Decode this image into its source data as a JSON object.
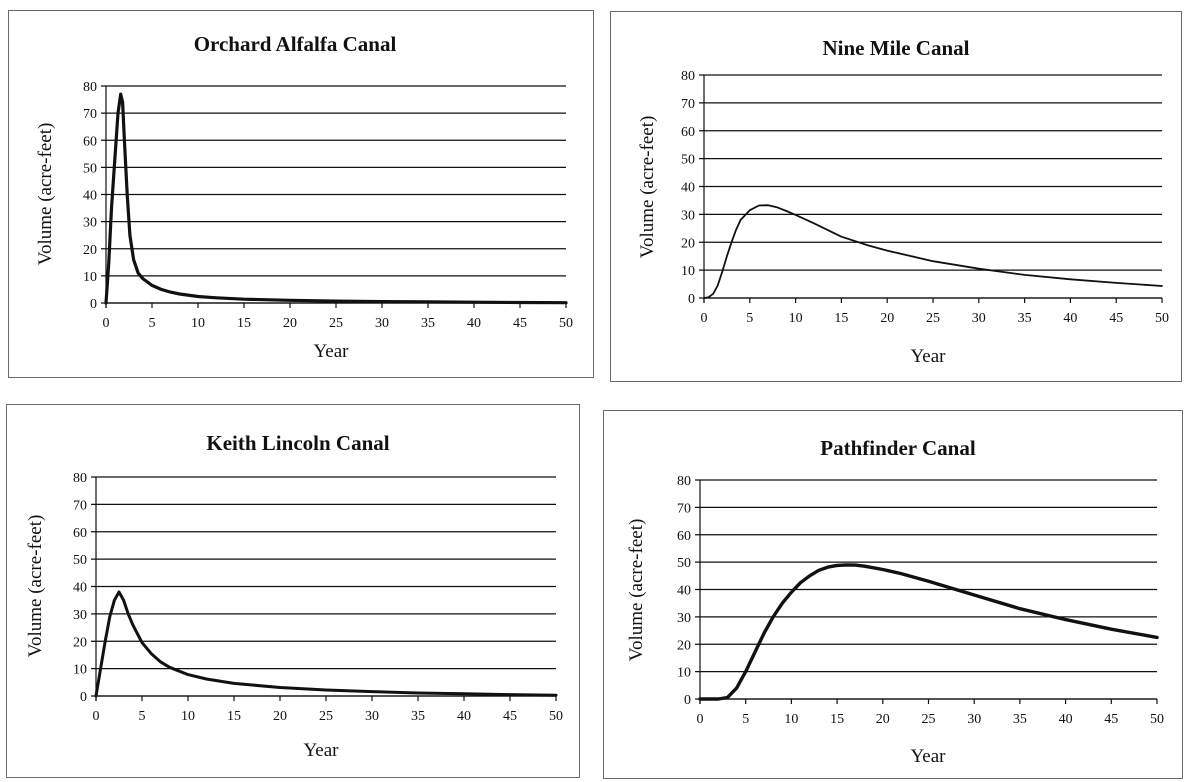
{
  "chart_data": [
    {
      "type": "line",
      "title": "Orchard Alfalfa Canal",
      "xlabel": "Year",
      "ylabel": "Volume (acre-feet)",
      "xlim": [
        0,
        50
      ],
      "ylim": [
        0,
        80
      ],
      "xticks": [
        "0",
        "5",
        "10",
        "15",
        "20",
        "25",
        "30",
        "35",
        "40",
        "45",
        "50"
      ],
      "yticks": [
        "0",
        "10",
        "20",
        "30",
        "40",
        "50",
        "60",
        "70",
        "80"
      ],
      "grid": true,
      "series": [
        {
          "x": [
            0,
            0.3,
            0.6,
            1,
            1.3,
            1.6,
            1.8,
            2,
            2.3,
            2.6,
            3,
            3.5,
            4,
            5,
            6,
            7,
            8,
            10,
            12,
            15,
            20,
            25,
            30,
            35,
            40,
            45,
            50
          ],
          "y": [
            0,
            15,
            35,
            55,
            70,
            77,
            74,
            60,
            40,
            25,
            16,
            11,
            9,
            6.5,
            5,
            4,
            3.3,
            2.4,
            1.9,
            1.4,
            1,
            0.7,
            0.5,
            0.4,
            0.3,
            0.2,
            0.1
          ]
        }
      ]
    },
    {
      "type": "line",
      "title": "Nine Mile Canal",
      "xlabel": "Year",
      "ylabel": "Volume (acre-feet)",
      "xlim": [
        0,
        50
      ],
      "ylim": [
        0,
        80
      ],
      "xticks": [
        "0",
        "5",
        "10",
        "15",
        "20",
        "25",
        "30",
        "35",
        "40",
        "45",
        "50"
      ],
      "yticks": [
        "0",
        "10",
        "20",
        "30",
        "40",
        "50",
        "60",
        "70",
        "80"
      ],
      "grid": true,
      "series": [
        {
          "x": [
            0,
            0.5,
            1,
            1.5,
            2,
            2.5,
            3,
            3.5,
            4,
            5,
            6,
            7,
            8,
            9,
            10,
            12,
            15,
            18,
            20,
            25,
            30,
            35,
            40,
            45,
            50
          ],
          "y": [
            0,
            0.3,
            1.5,
            4.5,
            9.5,
            15,
            20,
            24.5,
            28,
            31.5,
            33.2,
            33.3,
            32.5,
            31.2,
            29.8,
            26.8,
            22,
            18.8,
            17,
            13.2,
            10.5,
            8.3,
            6.7,
            5.4,
            4.3
          ]
        }
      ]
    },
    {
      "type": "line",
      "title": "Keith Lincoln Canal",
      "xlabel": "Year",
      "ylabel": "Volume (acre-feet)",
      "xlim": [
        0,
        50
      ],
      "ylim": [
        0,
        80
      ],
      "xticks": [
        "0",
        "5",
        "10",
        "15",
        "20",
        "25",
        "30",
        "35",
        "40",
        "45",
        "50"
      ],
      "yticks": [
        "0",
        "10",
        "20",
        "30",
        "40",
        "50",
        "60",
        "70",
        "80"
      ],
      "grid": true,
      "series": [
        {
          "x": [
            0,
            0.5,
            1,
            1.5,
            2,
            2.5,
            3,
            3.5,
            4,
            5,
            6,
            7,
            8,
            10,
            12,
            15,
            20,
            25,
            30,
            35,
            40,
            45,
            50
          ],
          "y": [
            0,
            10,
            20,
            29,
            35,
            38,
            35,
            30,
            26,
            19.5,
            15.5,
            12.5,
            10.5,
            7.8,
            6.2,
            4.6,
            3.1,
            2.2,
            1.6,
            1.1,
            0.8,
            0.5,
            0.3
          ]
        }
      ]
    },
    {
      "type": "line",
      "title": "Pathfinder Canal",
      "xlabel": "Year",
      "ylabel": "Volume (acre-feet)",
      "xlim": [
        0,
        50
      ],
      "ylim": [
        0,
        80
      ],
      "xticks": [
        "0",
        "5",
        "10",
        "15",
        "20",
        "25",
        "30",
        "35",
        "40",
        "45",
        "50"
      ],
      "yticks": [
        "0",
        "10",
        "20",
        "30",
        "40",
        "50",
        "60",
        "70",
        "80"
      ],
      "grid": true,
      "series": [
        {
          "x": [
            0,
            1,
            2,
            3,
            4,
            5,
            6,
            7,
            8,
            9,
            10,
            11,
            12,
            13,
            14,
            15,
            16,
            17,
            18,
            20,
            22,
            25,
            28,
            30,
            35,
            40,
            45,
            50
          ],
          "y": [
            0,
            0,
            0,
            0.5,
            4,
            10,
            17,
            24,
            30,
            35,
            39,
            42.5,
            45,
            47,
            48.2,
            48.8,
            49,
            48.9,
            48.5,
            47.3,
            45.8,
            43,
            40,
            38,
            33,
            29,
            25.5,
            22.5
          ]
        }
      ]
    }
  ]
}
